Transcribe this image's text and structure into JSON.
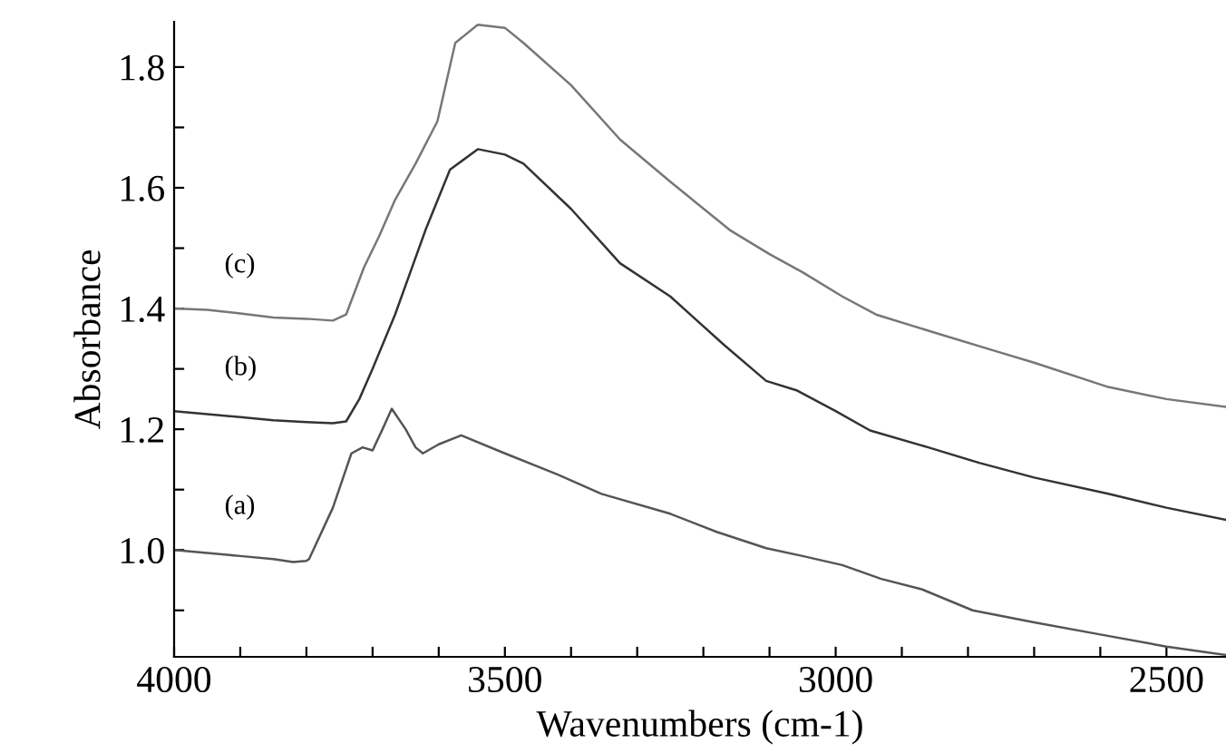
{
  "chart_data": {
    "type": "line",
    "xlabel": "Wavenumbers (cm-1)",
    "ylabel": "Absorbance",
    "xlim": [
      4000,
      2410
    ],
    "ylim": [
      0.823,
      1.875
    ],
    "xticks": [
      4000,
      {
        "value": 3900,
        "label": null
      },
      {
        "value": 3800,
        "label": null
      },
      {
        "value": 3700,
        "label": null
      },
      {
        "value": 3600,
        "label": null
      },
      3500,
      {
        "value": 3400,
        "label": null
      },
      {
        "value": 3300,
        "label": null
      },
      {
        "value": 3200,
        "label": null
      },
      {
        "value": 3100,
        "label": null
      },
      3000,
      {
        "value": 2900,
        "label": null
      },
      {
        "value": 2800,
        "label": null
      },
      {
        "value": 2700,
        "label": null
      },
      {
        "value": 2600,
        "label": null
      },
      2500
    ],
    "yticks": [
      {
        "value": 0.9,
        "label": null
      },
      {
        "value": 1.0,
        "label": "1.0"
      },
      {
        "value": 1.1,
        "label": null
      },
      {
        "value": 1.2,
        "label": "1.2"
      },
      {
        "value": 1.3,
        "label": null
      },
      {
        "value": 1.4,
        "label": "1.4"
      },
      {
        "value": 1.5,
        "label": null
      },
      {
        "value": 1.6,
        "label": "1.6"
      },
      {
        "value": 1.7,
        "label": null
      },
      {
        "value": 1.8,
        "label": "1.8"
      }
    ],
    "grid": false,
    "legend": false,
    "marker": "none",
    "line_style": "solid",
    "series": [
      {
        "name": "(a)",
        "color": "#555555",
        "x": [
          4000,
          3950,
          3900,
          3850,
          3820,
          3800,
          3796,
          3760,
          3732,
          3715,
          3700,
          3685,
          3671,
          3650,
          3635,
          3624,
          3600,
          3566,
          3500,
          3420,
          3354,
          3250,
          3180,
          3105,
          3050,
          2990,
          2931,
          2870,
          2793,
          2700,
          2600,
          2500,
          2410
        ],
        "values": [
          1.0,
          0.995,
          0.99,
          0.985,
          0.98,
          0.982,
          0.985,
          1.07,
          1.16,
          1.17,
          1.165,
          1.2,
          1.234,
          1.2,
          1.17,
          1.16,
          1.175,
          1.19,
          1.16,
          1.125,
          1.093,
          1.06,
          1.03,
          1.003,
          0.99,
          0.975,
          0.952,
          0.935,
          0.9,
          0.88,
          0.86,
          0.84,
          0.826
        ]
      },
      {
        "name": "(b)",
        "color": "#333333",
        "x": [
          4000,
          3950,
          3900,
          3850,
          3800,
          3760,
          3740,
          3720,
          3700,
          3666,
          3620,
          3583,
          3541,
          3500,
          3472,
          3400,
          3326,
          3250,
          3169,
          3105,
          3058,
          3000,
          2948,
          2860,
          2782,
          2700,
          2588,
          2500,
          2410
        ],
        "values": [
          1.23,
          1.225,
          1.22,
          1.215,
          1.212,
          1.21,
          1.213,
          1.25,
          1.3,
          1.39,
          1.53,
          1.63,
          1.664,
          1.655,
          1.64,
          1.565,
          1.475,
          1.42,
          1.34,
          1.28,
          1.264,
          1.23,
          1.198,
          1.17,
          1.144,
          1.12,
          1.093,
          1.07,
          1.05
        ]
      },
      {
        "name": "(c)",
        "color": "#777777",
        "x": [
          4000,
          3950,
          3900,
          3850,
          3800,
          3760,
          3740,
          3713,
          3690,
          3666,
          3635,
          3602,
          3575,
          3541,
          3500,
          3472,
          3400,
          3326,
          3250,
          3160,
          3100,
          3050,
          2990,
          2939,
          2850,
          2760,
          2699,
          2588,
          2500,
          2410
        ],
        "values": [
          1.4,
          1.398,
          1.392,
          1.385,
          1.383,
          1.38,
          1.39,
          1.468,
          1.52,
          1.58,
          1.64,
          1.71,
          1.84,
          1.87,
          1.865,
          1.84,
          1.77,
          1.68,
          1.61,
          1.53,
          1.49,
          1.46,
          1.42,
          1.39,
          1.36,
          1.33,
          1.31,
          1.27,
          1.25,
          1.237
        ]
      }
    ]
  }
}
